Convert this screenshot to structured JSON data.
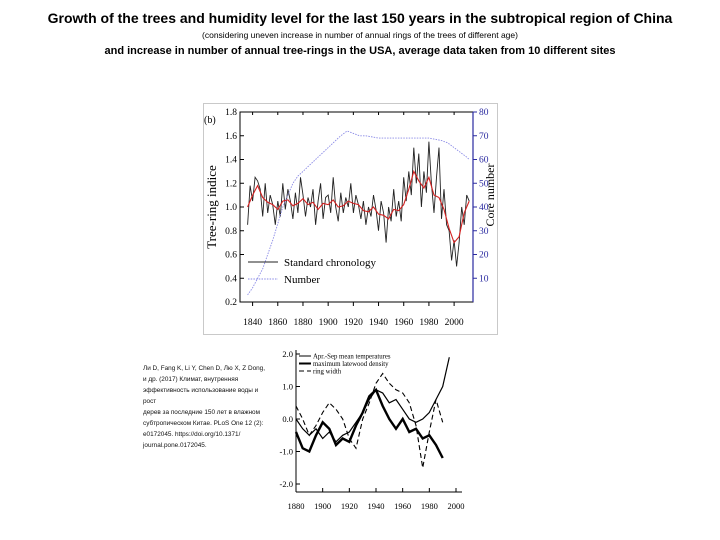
{
  "heading": {
    "title": "Growth of the trees and humidity level for the last 150 years in the subtropical region of China",
    "subtitle": "(considering uneven increase in number of annual rings of the trees of different age)",
    "title2": "and increase in number of annual tree-rings in the USA, average data taken from 10 different sites"
  },
  "citation": {
    "lines": [
      "Ли D, Fang K, Li Y, Chen D, Лю X, Z Dong,",
      "и др. (2017) Климат, внутренняя",
      "эффективность использование воды и рост",
      "дерев за последние 150 лет в влажном",
      "субтропическом Китае. PLoS One 12 (2):",
      "e0172045. https://doi.org/10.1371/",
      "journal.pone.0172045."
    ]
  },
  "chart_data": [
    {
      "type": "line",
      "panel_label": "(b)",
      "ylabel": "Tree-ring indice",
      "y2label": "Core number",
      "xlim": [
        1830,
        2015
      ],
      "ylim": [
        0.2,
        1.8
      ],
      "y2lim": [
        0,
        80
      ],
      "xticks": [
        "1840",
        "1860",
        "1880",
        "1900",
        "1920",
        "1940",
        "1960",
        "1980",
        "2000"
      ],
      "yticks": [
        "0.2",
        "0.4",
        "0.6",
        "0.8",
        "1.0",
        "1.2",
        "1.4",
        "1.6",
        "1.8"
      ],
      "y2ticks": [
        "10",
        "20",
        "30",
        "40",
        "50",
        "60",
        "70",
        "80"
      ],
      "legend_position": "lower-left",
      "grid": false,
      "colors": {
        "chronology": "#222222",
        "smooth": "#d42020",
        "number": "#8a8ae6",
        "right_axis": "#2a2aa0"
      },
      "series": [
        {
          "name": "Standard chronology",
          "x": [
            1836,
            1838,
            1840,
            1842,
            1844,
            1846,
            1848,
            1850,
            1852,
            1854,
            1856,
            1858,
            1860,
            1862,
            1864,
            1866,
            1868,
            1870,
            1872,
            1874,
            1876,
            1878,
            1880,
            1882,
            1884,
            1886,
            1888,
            1890,
            1892,
            1894,
            1896,
            1898,
            1900,
            1902,
            1904,
            1906,
            1908,
            1910,
            1912,
            1914,
            1916,
            1918,
            1920,
            1922,
            1924,
            1926,
            1928,
            1930,
            1932,
            1934,
            1936,
            1938,
            1940,
            1942,
            1944,
            1946,
            1948,
            1950,
            1952,
            1954,
            1956,
            1958,
            1960,
            1962,
            1964,
            1966,
            1968,
            1970,
            1972,
            1974,
            1976,
            1978,
            1980,
            1982,
            1984,
            1986,
            1988,
            1990,
            1992,
            1994,
            1996,
            1998,
            2000,
            2002,
            2004,
            2006,
            2008,
            2010,
            2012
          ],
          "values": [
            0.85,
            1.18,
            1.05,
            1.25,
            1.22,
            1.15,
            0.92,
            1.2,
            0.95,
            1.1,
            1.02,
            0.85,
            1.05,
            0.92,
            1.2,
            0.98,
            1.15,
            1.05,
            0.9,
            1.12,
            0.95,
            1.25,
            1.1,
            0.92,
            1.08,
            1.0,
            1.15,
            0.85,
            1.05,
            1.2,
            0.9,
            1.08,
            1.1,
            0.95,
            1.25,
            1.0,
            0.88,
            1.12,
            0.95,
            1.08,
            1.0,
            1.2,
            0.95,
            1.1,
            1.02,
            0.9,
            1.05,
            0.85,
            1.0,
            0.92,
            1.1,
            0.98,
            0.8,
            1.05,
            0.95,
            0.7,
            1.0,
            0.88,
            1.15,
            0.92,
            1.05,
            0.88,
            1.25,
            1.05,
            1.3,
            1.1,
            1.5,
            1.2,
            1.45,
            1.0,
            1.3,
            1.12,
            1.55,
            1.2,
            0.95,
            1.25,
            1.5,
            0.9,
            1.15,
            0.85,
            0.8,
            0.55,
            0.72,
            0.5,
            0.7,
            1.0,
            0.85,
            1.1,
            1.05
          ]
        },
        {
          "name": "",
          "x": [
            1836,
            1840,
            1844,
            1848,
            1852,
            1856,
            1860,
            1864,
            1868,
            1872,
            1876,
            1880,
            1884,
            1888,
            1892,
            1896,
            1900,
            1904,
            1908,
            1912,
            1916,
            1920,
            1924,
            1928,
            1932,
            1936,
            1940,
            1944,
            1948,
            1952,
            1956,
            1960,
            1964,
            1968,
            1972,
            1976,
            1980,
            1984,
            1988,
            1992,
            1996,
            2000,
            2004,
            2008,
            2012
          ],
          "values": [
            1.0,
            1.1,
            1.18,
            1.08,
            1.04,
            1.02,
            0.98,
            1.05,
            1.06,
            1.01,
            1.03,
            1.07,
            1.02,
            1.04,
            0.98,
            1.03,
            1.02,
            1.06,
            1.0,
            1.01,
            1.05,
            1.03,
            1.02,
            0.97,
            0.96,
            1.0,
            0.94,
            0.93,
            0.9,
            0.98,
            0.97,
            1.02,
            1.15,
            1.3,
            1.22,
            1.16,
            1.25,
            1.1,
            1.08,
            0.98,
            0.82,
            0.7,
            0.75,
            0.95,
            1.05
          ]
        },
        {
          "name": "Number",
          "axis": "right",
          "x": [
            1836,
            1840,
            1844,
            1848,
            1852,
            1856,
            1860,
            1864,
            1868,
            1872,
            1876,
            1880,
            1884,
            1888,
            1892,
            1896,
            1900,
            1904,
            1908,
            1910,
            1915,
            1920,
            1925,
            1930,
            1940,
            1950,
            1960,
            1970,
            1980,
            1990,
            1995,
            2000,
            2005,
            2010,
            2012
          ],
          "values": [
            3,
            6,
            10,
            14,
            20,
            26,
            33,
            40,
            45,
            50,
            53,
            55,
            57,
            59,
            61,
            63,
            65,
            67,
            69,
            70,
            72,
            71,
            70,
            70,
            69,
            69,
            69,
            69,
            69,
            68,
            67,
            65,
            63,
            61,
            60
          ]
        }
      ]
    },
    {
      "type": "line",
      "xlim": [
        1880,
        2000
      ],
      "ylim": [
        -2.0,
        2.0
      ],
      "xticks": [
        "1880",
        "1900",
        "1920",
        "1940",
        "1960",
        "1980",
        "2000"
      ],
      "yticks": [
        "2.0",
        "1.0",
        "0.0",
        "-1.0",
        "-2.0"
      ],
      "legend_position": "top-left",
      "grid": false,
      "series": [
        {
          "name": "Apr.-Sep mean temperatures",
          "x": [
            1880,
            1885,
            1890,
            1895,
            1900,
            1905,
            1910,
            1915,
            1920,
            1925,
            1930,
            1935,
            1940,
            1945,
            1950,
            1955,
            1960,
            1965,
            1970,
            1975,
            1980,
            1985,
            1990,
            1995
          ],
          "values": [
            0.0,
            -0.3,
            -0.5,
            -0.3,
            -0.6,
            -0.4,
            -0.7,
            -0.5,
            -0.4,
            -0.1,
            0.2,
            0.6,
            0.9,
            0.8,
            0.5,
            0.6,
            0.3,
            0.0,
            -0.1,
            0.0,
            0.2,
            0.6,
            1.0,
            1.9
          ]
        },
        {
          "name": "maximum latewood density",
          "x": [
            1880,
            1885,
            1890,
            1895,
            1900,
            1905,
            1910,
            1915,
            1920,
            1925,
            1930,
            1935,
            1940,
            1945,
            1950,
            1955,
            1960,
            1965,
            1970,
            1975,
            1980,
            1985,
            1990
          ],
          "values": [
            -0.4,
            -0.9,
            -1.0,
            -0.5,
            -0.1,
            -0.3,
            -0.8,
            -0.6,
            -0.7,
            -0.2,
            0.2,
            0.7,
            0.9,
            0.4,
            0.0,
            -0.3,
            0.0,
            -0.4,
            -0.3,
            -0.6,
            -0.5,
            -0.8,
            -1.2
          ]
        },
        {
          "name": "ring width",
          "x": [
            1880,
            1885,
            1890,
            1895,
            1900,
            1905,
            1910,
            1915,
            1920,
            1925,
            1930,
            1935,
            1940,
            1945,
            1950,
            1955,
            1960,
            1965,
            1970,
            1975,
            1980,
            1985,
            1990
          ],
          "values": [
            0.4,
            0.0,
            -0.5,
            -0.2,
            0.2,
            0.5,
            0.3,
            0.0,
            -0.6,
            -0.9,
            0.0,
            0.5,
            1.1,
            1.4,
            1.1,
            0.9,
            0.8,
            0.5,
            -0.2,
            -1.5,
            -0.4,
            0.6,
            -0.1
          ]
        }
      ]
    }
  ]
}
